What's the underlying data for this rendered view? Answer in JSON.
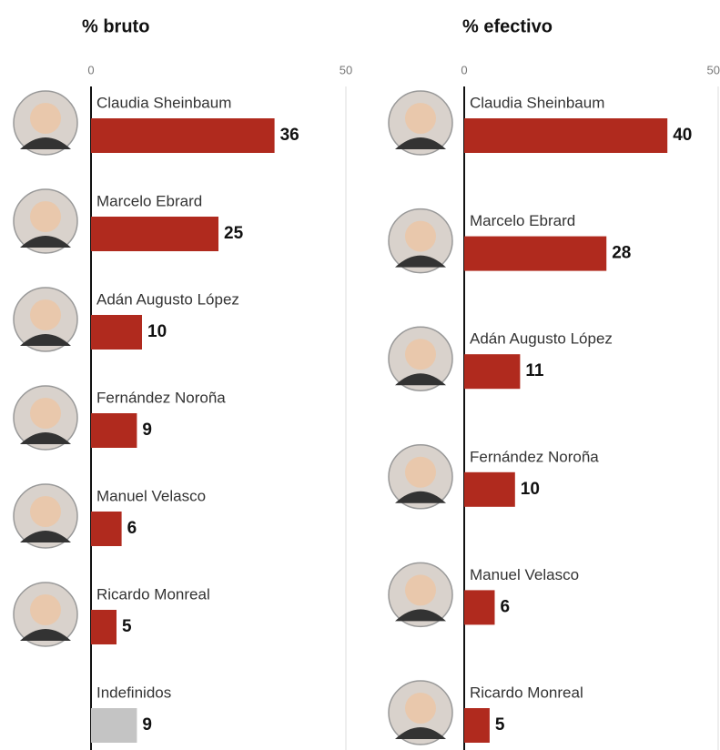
{
  "chart_data": [
    {
      "type": "bar",
      "title": "% bruto",
      "categories": [
        "Claudia Sheinbaum",
        "Marcelo Ebrard",
        "Adán Augusto López",
        "Fernández Noroña",
        "Manuel Velasco",
        "Ricardo Monreal",
        "Indefinidos"
      ],
      "values": [
        36,
        25,
        10,
        9,
        6,
        5,
        9
      ],
      "colors": [
        "#b02a1e",
        "#b02a1e",
        "#b02a1e",
        "#b02a1e",
        "#b02a1e",
        "#b02a1e",
        "#c4c4c4"
      ],
      "xlim": [
        0,
        50
      ],
      "xticks": [
        0,
        50
      ],
      "grid": true
    },
    {
      "type": "bar",
      "title": "% efectivo",
      "categories": [
        "Claudia Sheinbaum",
        "Marcelo Ebrard",
        "Adán Augusto López",
        "Fernández Noroña",
        "Manuel Velasco",
        "Ricardo Monreal"
      ],
      "values": [
        40,
        28,
        11,
        10,
        6,
        5
      ],
      "colors": [
        "#b02a1e",
        "#b02a1e",
        "#b02a1e",
        "#b02a1e",
        "#b02a1e",
        "#b02a1e"
      ],
      "xlim": [
        0,
        50
      ],
      "xticks": [
        0,
        50
      ],
      "grid": true
    }
  ]
}
